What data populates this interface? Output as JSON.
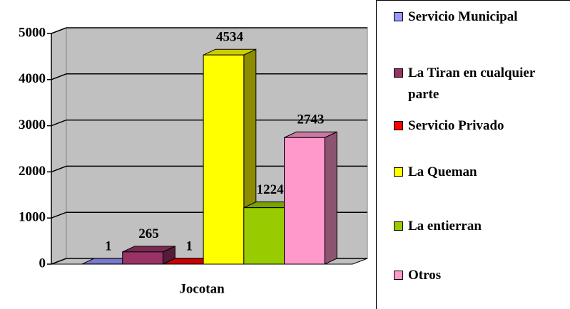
{
  "chart_data": {
    "type": "bar3d",
    "categories": [
      "Jocotan"
    ],
    "series": [
      {
        "name": "Servicio Municipal",
        "color": "#9999ff",
        "values": [
          1
        ]
      },
      {
        "name": "La Tiran en cualquier parte",
        "color": "#993366",
        "values": [
          265
        ]
      },
      {
        "name": "Servicio Privado",
        "color": "#ff0000",
        "values": [
          1
        ]
      },
      {
        "name": "La Queman",
        "color": "#ffff00",
        "values": [
          4534
        ]
      },
      {
        "name": "La entierran",
        "color": "#99cc00",
        "values": [
          1224
        ]
      },
      {
        "name": "Otros",
        "color": "#ff99cc",
        "values": [
          2743
        ]
      }
    ],
    "ylim": [
      0,
      5000
    ],
    "yticks": [
      0,
      1000,
      2000,
      3000,
      4000,
      5000
    ],
    "grid": true,
    "legend": "right"
  }
}
